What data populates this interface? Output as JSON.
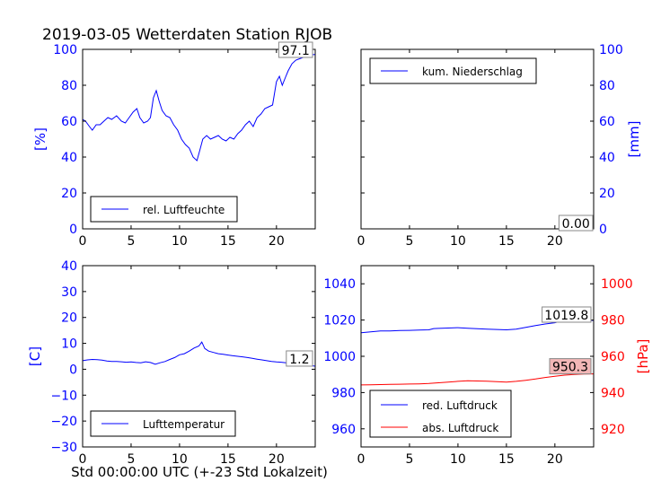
{
  "figure": {
    "title": "2019-03-05 Wetterdaten Station RJOB",
    "xlabel": "Std 00:00:00 UTC (+-23 Std Lokalzeit)"
  },
  "colors": {
    "blue": "#0000ff",
    "red": "#ff0000",
    "value_box_fill": "#f2b6b6"
  },
  "chart_data": [
    {
      "id": "humidity",
      "type": "line",
      "ylabel": "[%]",
      "xlim": [
        0,
        24
      ],
      "ylim": [
        0,
        100
      ],
      "xticks": [
        "0",
        "5",
        "10",
        "15",
        "20"
      ],
      "yticks": [
        "0",
        "20",
        "40",
        "60",
        "80",
        "100"
      ],
      "legend": "rel. Luftfeuchte",
      "legend_position": "lower-left",
      "last_value_label": "97.1",
      "series": [
        {
          "name": "rel. Luftfeuchte",
          "color": "#0000ff",
          "x": [
            0,
            0.3,
            0.7,
            1.0,
            1.4,
            1.8,
            2.2,
            2.6,
            3.0,
            3.5,
            4.0,
            4.4,
            4.8,
            5.2,
            5.6,
            5.9,
            6.3,
            6.7,
            7.0,
            7.3,
            7.6,
            7.9,
            8.2,
            8.6,
            9.0,
            9.4,
            9.8,
            10.2,
            10.6,
            11.0,
            11.4,
            11.8,
            12.1,
            12.4,
            12.8,
            13.2,
            13.6,
            14.0,
            14.4,
            14.8,
            15.2,
            15.6,
            16.0,
            16.4,
            16.8,
            17.2,
            17.6,
            18.0,
            18.4,
            18.8,
            19.2,
            19.6,
            20.0,
            20.3,
            20.6,
            20.9,
            21.2,
            21.6,
            22.0,
            22.5,
            23.0,
            23.5,
            24.0
          ],
          "y": [
            61,
            60,
            57,
            55,
            58,
            58,
            60,
            62,
            61,
            63,
            60,
            59,
            62,
            65,
            67,
            62,
            59,
            60,
            62,
            73,
            77,
            71,
            66,
            63,
            62,
            58,
            55,
            50,
            47,
            45,
            40,
            38,
            44,
            50,
            52,
            50,
            51,
            52,
            50,
            49,
            51,
            50,
            53,
            55,
            58,
            60,
            57,
            62,
            64,
            67,
            68,
            69,
            82,
            85,
            80,
            84,
            88,
            92,
            94,
            95,
            96,
            97,
            97.1
          ]
        }
      ]
    },
    {
      "id": "precipitation",
      "type": "line",
      "ylabel": "[mm]",
      "xlim": [
        0,
        24
      ],
      "ylim": [
        0,
        100
      ],
      "xticks": [
        "0",
        "5",
        "10",
        "15",
        "20"
      ],
      "yticks": [
        "0",
        "20",
        "40",
        "60",
        "80",
        "100"
      ],
      "legend": "kum. Niederschlag",
      "legend_position": "upper-left",
      "last_value_label": "0.00",
      "series": [
        {
          "name": "kum. Niederschlag",
          "color": "#0000ff",
          "x": [
            0,
            24
          ],
          "y": [
            0,
            0
          ]
        }
      ]
    },
    {
      "id": "temperature",
      "type": "line",
      "ylabel": "[C]",
      "xlim": [
        0,
        24
      ],
      "ylim": [
        -30,
        40
      ],
      "xticks": [
        "0",
        "5",
        "10",
        "15",
        "20"
      ],
      "yticks": [
        "−30",
        "−20",
        "−10",
        "0",
        "10",
        "20",
        "30",
        "40"
      ],
      "legend": "Lufttemperatur",
      "legend_position": "lower-left",
      "last_value_label": "1.2",
      "series": [
        {
          "name": "Lufttemperatur",
          "color": "#0000ff",
          "x": [
            0,
            0.5,
            1,
            1.5,
            2,
            2.5,
            3,
            3.5,
            4,
            4.5,
            5,
            5.5,
            6,
            6.5,
            7,
            7.5,
            8,
            8.5,
            9,
            9.5,
            10,
            10.5,
            11,
            11.5,
            12,
            12.3,
            12.6,
            13,
            13.5,
            14,
            14.5,
            15,
            15.5,
            16,
            16.5,
            17,
            17.5,
            18,
            18.5,
            19,
            19.5,
            20,
            20.5,
            21,
            21.5,
            22,
            22.5,
            23,
            23.5,
            24
          ],
          "y": [
            3.3,
            3.6,
            3.8,
            3.7,
            3.5,
            3.2,
            3.0,
            3.0,
            2.9,
            2.7,
            2.8,
            2.6,
            2.5,
            2.9,
            2.6,
            1.9,
            2.5,
            3.0,
            3.8,
            4.5,
            5.6,
            6.0,
            7.0,
            8.2,
            9.0,
            10.5,
            8.0,
            7.0,
            6.5,
            6.0,
            5.8,
            5.5,
            5.2,
            5.0,
            4.8,
            4.5,
            4.2,
            3.9,
            3.6,
            3.3,
            3.0,
            2.8,
            2.7,
            2.5,
            2.2,
            2.0,
            1.8,
            1.6,
            1.4,
            1.2
          ]
        }
      ]
    },
    {
      "id": "pressure",
      "type": "line",
      "ylabel_right": "[hPa]",
      "xlim": [
        0,
        24
      ],
      "ylim_left": [
        950,
        1050
      ],
      "ylim_right": [
        910,
        1010
      ],
      "xticks": [
        "0",
        "5",
        "10",
        "15",
        "20"
      ],
      "yticks_left": [
        "960",
        "980",
        "1000",
        "1020",
        "1040"
      ],
      "yticks_right": [
        "920",
        "940",
        "960",
        "980",
        "1000"
      ],
      "legend_position": "lower-left",
      "series": [
        {
          "name": "red. Luftdruck",
          "color": "#0000ff",
          "axis": "left",
          "last_value_label": "1019.8",
          "x": [
            0,
            1,
            2,
            3,
            4,
            5,
            6,
            7,
            7.5,
            8,
            9,
            10,
            11,
            12,
            13,
            14,
            15,
            16,
            17,
            18,
            19,
            20,
            20.5,
            21,
            22,
            23,
            24
          ],
          "y": [
            1013,
            1013.5,
            1014,
            1014,
            1014.2,
            1014.3,
            1014.5,
            1014.6,
            1015.3,
            1015.4,
            1015.6,
            1015.8,
            1015.5,
            1015.2,
            1015,
            1014.8,
            1014.6,
            1015,
            1016,
            1017,
            1017.8,
            1018.5,
            1019.2,
            1019.5,
            1019.7,
            1019.8,
            1019.8
          ]
        },
        {
          "name": "abs. Luftdruck",
          "color": "#ff0000",
          "axis": "right",
          "last_value_label": "950.3",
          "x": [
            0,
            1,
            2,
            3,
            4,
            5,
            6,
            7,
            8,
            9,
            10,
            11,
            12,
            13,
            14,
            15,
            16,
            17,
            18,
            19,
            20,
            21,
            22,
            23,
            24
          ],
          "y": [
            944.2,
            944.3,
            944.4,
            944.5,
            944.6,
            944.7,
            944.8,
            945,
            945.4,
            945.8,
            946.2,
            946.5,
            946.4,
            946.3,
            946,
            945.8,
            946.2,
            946.8,
            947.5,
            948.3,
            949,
            949.6,
            950,
            950.2,
            950.3
          ]
        }
      ]
    }
  ]
}
